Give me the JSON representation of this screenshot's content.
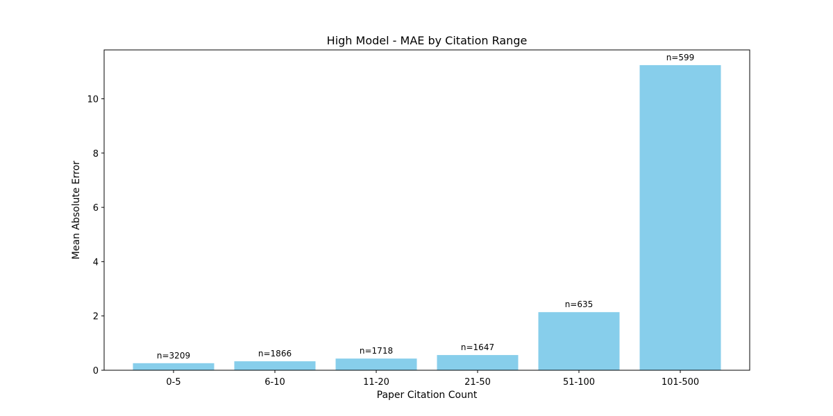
{
  "chart_data": {
    "type": "bar",
    "title": "High Model - MAE by Citation Range",
    "xlabel": "Paper Citation Count",
    "ylabel": "Mean Absolute Error",
    "categories": [
      "0-5",
      "6-10",
      "11-20",
      "21-50",
      "51-100",
      "101-500"
    ],
    "values": [
      0.26,
      0.33,
      0.43,
      0.56,
      2.14,
      11.24
    ],
    "data_labels": [
      "n=3209",
      "n=1866",
      "n=1718",
      "n=1647",
      "n=635",
      "n=599"
    ],
    "ylim": [
      0,
      11.8
    ],
    "yticks": [
      0,
      2,
      4,
      6,
      8,
      10
    ],
    "ytick_labels": [
      "0",
      "2",
      "4",
      "6",
      "8",
      "10"
    ],
    "grid": false,
    "colors": {
      "bar": "#87ceeb",
      "axis": "#000000",
      "text": "#000000",
      "background": "#ffffff"
    }
  }
}
